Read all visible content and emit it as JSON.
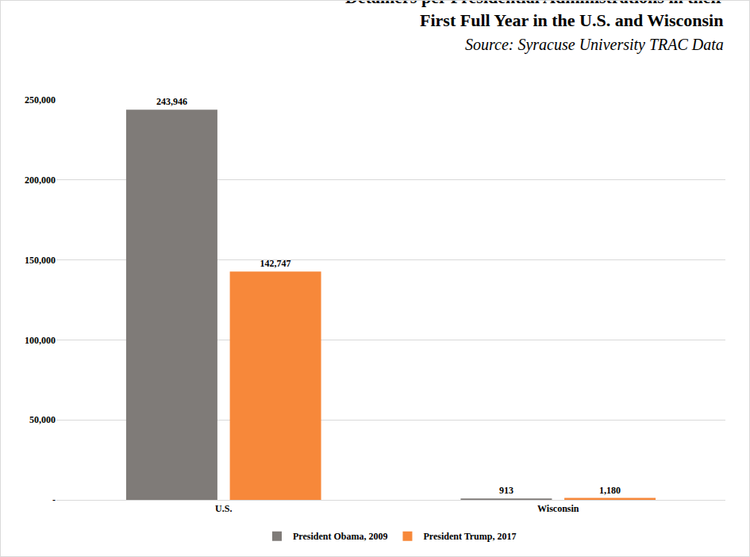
{
  "chart_data": {
    "type": "bar",
    "title": "Detainers per Presidential Administrations in their First Full Year in the U.S. and Wisconsin",
    "subtitle": "Source: Syracuse University TRAC Data",
    "categories": [
      "U.S.",
      "Wisconsin"
    ],
    "series": [
      {
        "name": "President Obama, 2009",
        "color": "#7f7b78",
        "values": [
          243946,
          913
        ],
        "value_labels": [
          "243,946",
          "913"
        ]
      },
      {
        "name": "President Trump, 2017",
        "color": "#f7883a",
        "values": [
          142747,
          1180
        ],
        "value_labels": [
          "142,747",
          "1,180"
        ]
      }
    ],
    "ylim": [
      0,
      250000
    ],
    "yticks": [
      {
        "value": 0,
        "label": "-"
      },
      {
        "value": 50000,
        "label": "50,000"
      },
      {
        "value": 100000,
        "label": "100,000"
      },
      {
        "value": 150000,
        "label": "150,000"
      },
      {
        "value": 200000,
        "label": "200,000"
      },
      {
        "value": 250000,
        "label": "250,000"
      }
    ],
    "grid": true,
    "legend": "bottom",
    "data_labels": true
  }
}
